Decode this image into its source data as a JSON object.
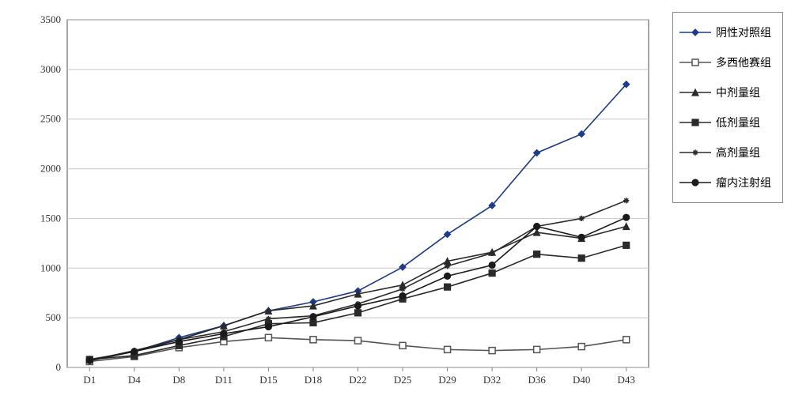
{
  "chart": {
    "type": "line",
    "background_color": "#ffffff",
    "plot_border_color": "#888888",
    "grid_color": "#c8c8c8",
    "tick_fontsize": 13,
    "legend_fontsize": 14,
    "categories": [
      "D1",
      "D4",
      "D8",
      "D11",
      "D15",
      "D18",
      "D22",
      "D25",
      "D29",
      "D32",
      "D36",
      "D40",
      "D43"
    ],
    "ylim": [
      0,
      3500
    ],
    "ytick_step": 500,
    "line_width": 1.6,
    "marker_size": 8,
    "series": [
      {
        "id": "ctrl",
        "name": "阴性对照组",
        "marker": "diamond",
        "marker_fill": "#1f3b8a",
        "line_color": "#1f3b8a",
        "values": [
          70,
          160,
          300,
          420,
          570,
          660,
          770,
          1010,
          1340,
          1630,
          2160,
          2350,
          2850
        ]
      },
      {
        "id": "doc",
        "name": "多西他赛组",
        "marker": "square-open",
        "marker_fill": "none",
        "marker_stroke": "#555555",
        "line_color": "#555555",
        "values": [
          60,
          110,
          200,
          260,
          300,
          280,
          270,
          220,
          180,
          170,
          180,
          210,
          280
        ]
      },
      {
        "id": "mid",
        "name": "中剂量组",
        "marker": "triangle",
        "marker_fill": "#2a2a2a",
        "line_color": "#2a2a2a",
        "values": [
          80,
          160,
          280,
          420,
          570,
          620,
          740,
          830,
          1070,
          1160,
          1360,
          1300,
          1420
        ]
      },
      {
        "id": "low",
        "name": "低剂量组",
        "marker": "square",
        "marker_fill": "#2a2a2a",
        "line_color": "#2a2a2a",
        "values": [
          80,
          120,
          220,
          310,
          440,
          450,
          550,
          690,
          810,
          950,
          1140,
          1100,
          1230
        ]
      },
      {
        "id": "high",
        "name": "高剂量组",
        "marker": "asterisk",
        "marker_fill": "#2a2a2a",
        "line_color": "#2a2a2a",
        "values": [
          70,
          170,
          280,
          360,
          490,
          520,
          640,
          790,
          1020,
          1150,
          1420,
          1500,
          1680
        ]
      },
      {
        "id": "intra",
        "name": "瘤内注射组",
        "marker": "circle",
        "marker_fill": "#1a1a1a",
        "line_color": "#1a1a1a",
        "values": [
          70,
          160,
          260,
          340,
          410,
          510,
          620,
          720,
          920,
          1030,
          1420,
          1310,
          1510
        ]
      }
    ]
  }
}
